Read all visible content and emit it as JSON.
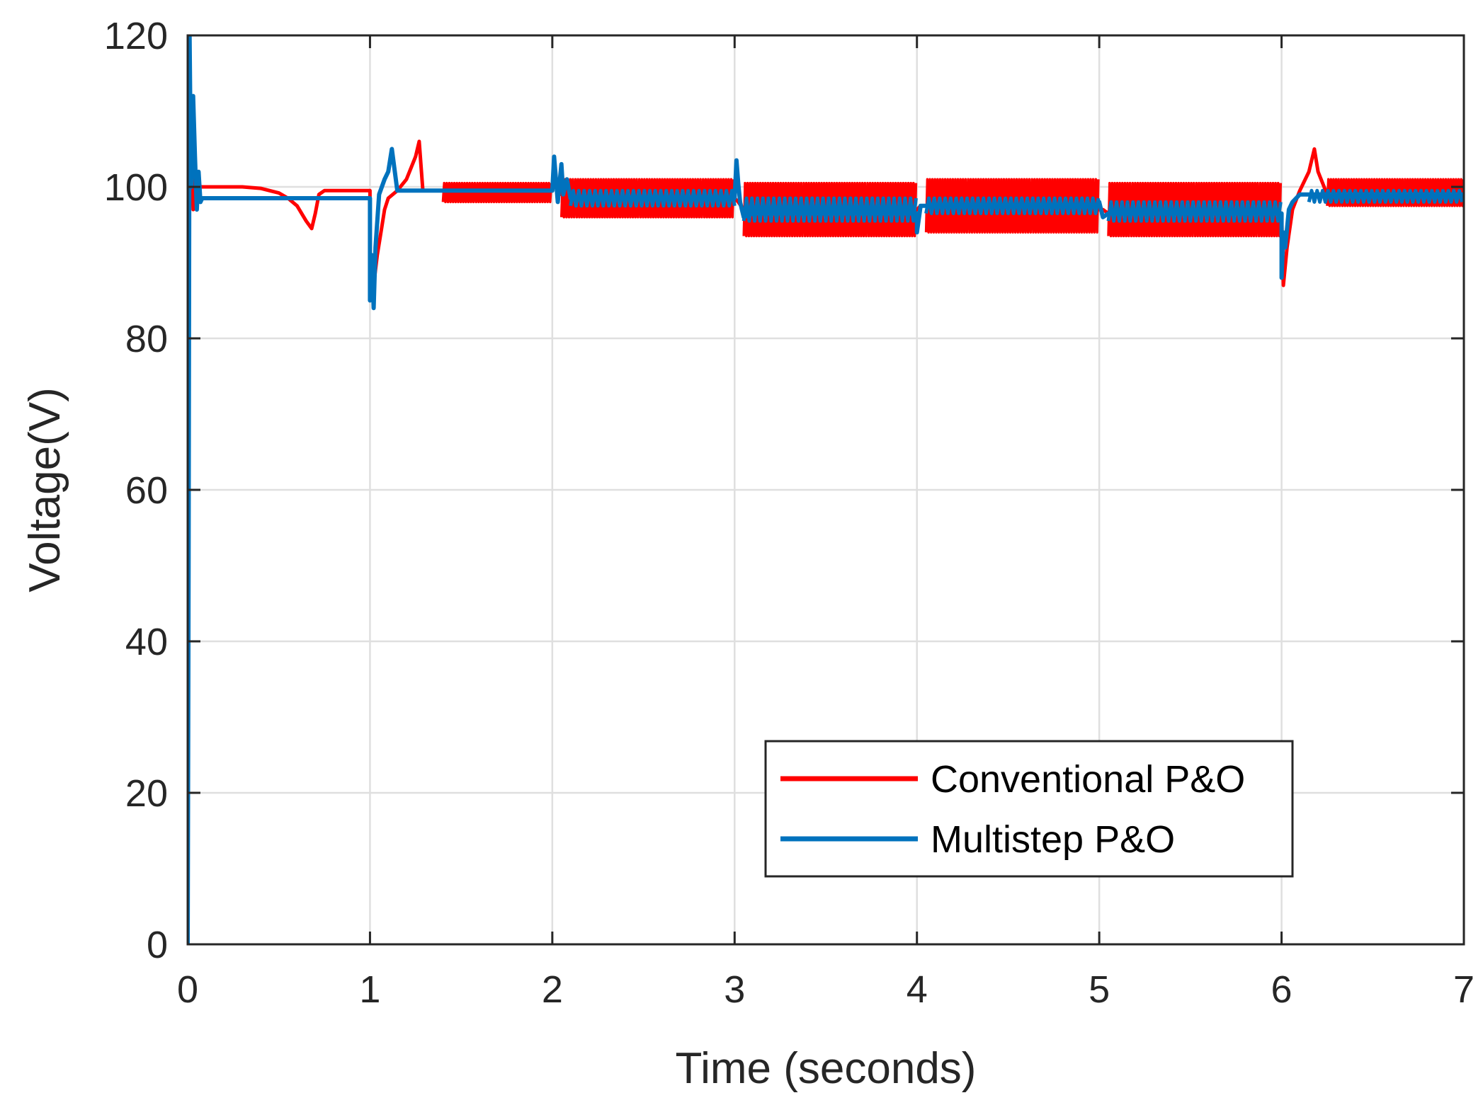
{
  "chart_data": {
    "type": "line",
    "title": "",
    "xlabel": "Time (seconds)",
    "ylabel": "Voltage(V)",
    "xlim": [
      0,
      7
    ],
    "ylim": [
      0,
      120
    ],
    "xticks": [
      0,
      1,
      2,
      3,
      4,
      5,
      6,
      7
    ],
    "yticks": [
      0,
      20,
      40,
      60,
      80,
      100,
      120
    ],
    "grid": true,
    "legend_position": "bottom-right",
    "series": [
      {
        "name": "Conventional P&O",
        "color": "#ff0000",
        "x": [
          0,
          0.005,
          0.01,
          0.02,
          0.03,
          0.04,
          0.05,
          0.06,
          0.08,
          0.1,
          0.2,
          0.3,
          0.4,
          0.5,
          0.55,
          0.6,
          0.65,
          0.68,
          0.7,
          0.72,
          0.75,
          0.8,
          0.9,
          1.0,
          1.0,
          1.02,
          1.04,
          1.06,
          1.08,
          1.1,
          1.15,
          1.2,
          1.25,
          1.27,
          1.29,
          1.32,
          1.35,
          1.4,
          1.5,
          1.6,
          1.7,
          1.8,
          1.9,
          2.0,
          2.02,
          2.05,
          2.1,
          2.2,
          2.4,
          2.6,
          2.8,
          3.0,
          3.02,
          3.05,
          3.1,
          3.5,
          4.0,
          4.02,
          4.05,
          4.5,
          5.0,
          5.02,
          5.05,
          5.5,
          6.0,
          6.01,
          6.03,
          6.06,
          6.1,
          6.15,
          6.18,
          6.2,
          6.25,
          6.5,
          7.0
        ],
        "y": [
          0,
          52,
          112,
          105,
          97,
          101,
          99,
          100,
          100,
          100,
          100,
          100,
          99.8,
          99.2,
          98.5,
          97.5,
          95.5,
          94.5,
          96.5,
          99,
          99.5,
          99.5,
          99.5,
          99.5,
          85,
          87,
          91,
          94,
          97,
          98.5,
          99.5,
          101,
          104,
          106,
          99.5,
          99.5,
          99.5,
          99.5,
          99.5,
          99.5,
          99.5,
          99.5,
          99.5,
          99.5,
          101,
          99,
          98.5,
          98.5,
          98.5,
          98.5,
          98.5,
          98.5,
          98,
          97,
          97,
          97,
          97,
          97.5,
          97.5,
          97.5,
          97,
          97,
          96.5,
          96.5,
          96.5,
          87,
          92,
          97,
          99.5,
          102,
          105,
          102,
          99,
          99,
          99
        ],
        "oscillation_bands": [
          {
            "x": [
              1.4,
              2.0
            ],
            "range": [
              98,
              100.5
            ]
          },
          {
            "x": [
              2.05,
              3.0
            ],
            "range": [
              96,
              101
            ]
          },
          {
            "x": [
              3.05,
              4.0
            ],
            "range": [
              93.5,
              100.5
            ]
          },
          {
            "x": [
              4.05,
              5.0
            ],
            "range": [
              94,
              101
            ]
          },
          {
            "x": [
              5.05,
              6.0
            ],
            "range": [
              93.5,
              100.5
            ]
          },
          {
            "x": [
              6.25,
              7.0
            ],
            "range": [
              97.5,
              101
            ]
          }
        ]
      },
      {
        "name": "Multistep P&O",
        "color": "#0072bd",
        "x": [
          0,
          0.005,
          0.01,
          0.015,
          0.02,
          0.03,
          0.04,
          0.05,
          0.06,
          0.07,
          0.08,
          0.1,
          0.2,
          0.5,
          1.0,
          1.0,
          1.01,
          1.02,
          1.03,
          1.05,
          1.08,
          1.1,
          1.12,
          1.15,
          1.2,
          1.5,
          2.0,
          2.01,
          2.02,
          2.03,
          2.05,
          2.06,
          2.08,
          2.1,
          2.15,
          3.0,
          3.01,
          3.02,
          3.03,
          3.05,
          3.1,
          4.0,
          4.0,
          4.02,
          4.05,
          5.0,
          5.0,
          5.02,
          5.05,
          6.0,
          6.0,
          6.01,
          6.02,
          6.04,
          6.06,
          6.1,
          6.15,
          7.0
        ],
        "y": [
          0,
          50,
          121,
          108,
          100,
          112,
          104,
          97,
          102,
          98,
          98.5,
          98.5,
          98.5,
          98.5,
          98.5,
          85,
          91,
          84,
          92,
          99,
          101,
          102,
          105,
          99.5,
          99.5,
          99.5,
          99.5,
          104,
          101,
          98,
          103,
          99,
          101,
          98.5,
          98.5,
          98.5,
          103.5,
          100.5,
          98,
          96,
          96.5,
          96.5,
          94,
          97.5,
          97.5,
          97.5,
          98,
          96,
          96.5,
          96.5,
          88,
          94,
          92,
          97,
          98,
          99,
          99,
          99
        ],
        "oscillation_bands": [
          {
            "x": [
              2.1,
              3.0
            ],
            "range": [
              97.5,
              99.5
            ]
          },
          {
            "x": [
              3.05,
              4.0
            ],
            "range": [
              95.5,
              98.5
            ]
          },
          {
            "x": [
              4.05,
              5.0
            ],
            "range": [
              96.5,
              98.5
            ]
          },
          {
            "x": [
              5.05,
              6.0
            ],
            "range": [
              95.5,
              98
            ]
          },
          {
            "x": [
              6.15,
              7.0
            ],
            "range": [
              98,
              99.5
            ]
          }
        ]
      }
    ]
  },
  "legend": {
    "items": [
      "Conventional P&O",
      "Multistep P&O"
    ]
  }
}
